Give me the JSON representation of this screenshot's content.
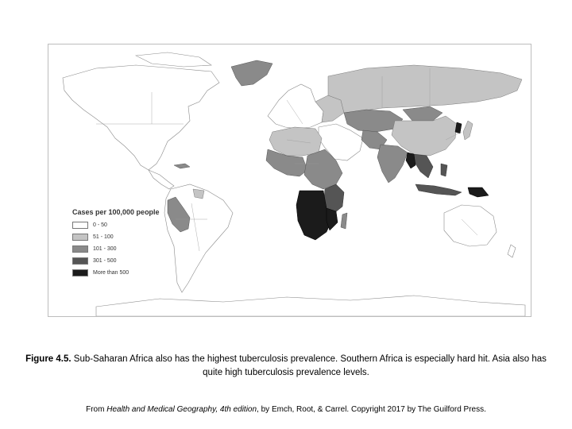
{
  "map": {
    "legend": {
      "title": "Cases per 100,000 people",
      "classes": [
        {
          "label": "0 - 50",
          "color": "#ffffff"
        },
        {
          "label": "51 - 100",
          "color": "#c4c4c4"
        },
        {
          "label": "101 - 300",
          "color": "#8a8a8a"
        },
        {
          "label": "301 - 500",
          "color": "#555555"
        },
        {
          "label": "More than 500",
          "color": "#1b1b1b"
        }
      ]
    }
  },
  "caption": {
    "label": "Figure 4.5.",
    "text": " Sub-Saharan Africa also has the highest tuberculosis prevalence. Southern Africa is especially hard hit. Asia also has quite high tuberculosis prevalence levels."
  },
  "credit": {
    "prefix": "From ",
    "book": "Health and Medical Geography, 4th edition",
    "suffix": ", by Emch, Root, & Carrel. Copyright 2017 by The Guilford Press."
  }
}
